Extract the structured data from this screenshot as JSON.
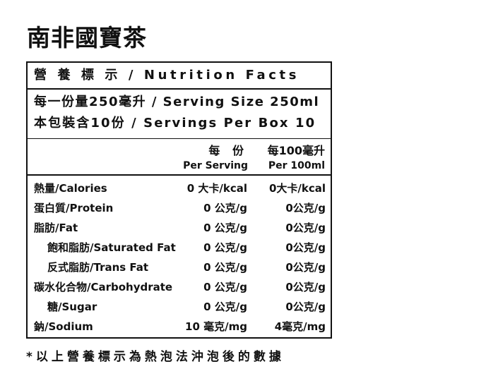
{
  "product_name": "南非國寶茶",
  "header": "營 養 標 示 / Nutrition Facts",
  "serving_size": "每一份量250毫升 / Serving Size 250ml",
  "servings_per_box": "本包裝含10份 / Servings Per Box 10",
  "columns": {
    "per_serving_zh": "每 份",
    "per_serving_en": "Per Serving",
    "per_100_zh": "每100毫升",
    "per_100_en": "Per 100ml"
  },
  "nutrients": [
    {
      "name": "熱量/Calories",
      "per_serving": "0 大卡/kcal",
      "per_100ml": "0大卡/kcal"
    },
    {
      "name": "蛋白質/Protein",
      "per_serving": "0 公克/g",
      "per_100ml": "0公克/g"
    },
    {
      "name": "脂肪/Fat",
      "per_serving": "0 公克/g",
      "per_100ml": "0公克/g"
    },
    {
      "name": "飽和脂肪/Saturated Fat",
      "per_serving": "0 公克/g",
      "per_100ml": "0公克/g"
    },
    {
      "name": "反式脂肪/Trans Fat",
      "per_serving": "0 公克/g",
      "per_100ml": "0公克/g"
    },
    {
      "name": "碳水化合物/Carbohydrate",
      "per_serving": "0 公克/g",
      "per_100ml": "0公克/g"
    },
    {
      "name": "糖/Sugar",
      "per_serving": "0 公克/g",
      "per_100ml": "0公克/g"
    },
    {
      "name": "鈉/Sodium",
      "per_serving": "10 毫克/mg",
      "per_100ml": "4毫克/mg"
    }
  ],
  "footnote": "*以上營養標示為熱泡法沖泡後的數據"
}
